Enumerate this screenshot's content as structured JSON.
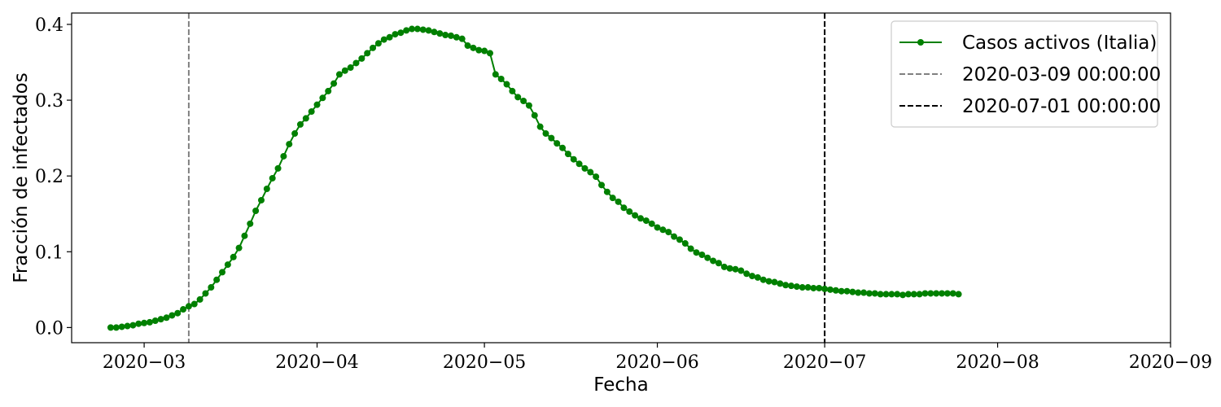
{
  "chart_data": {
    "type": "line",
    "xlabel": "Fecha",
    "ylabel": "Fracción de infectados",
    "xlim": [
      "2020-02-17",
      "2020-09-01"
    ],
    "ylim": [
      -0.02,
      0.415
    ],
    "x_ticks": [
      "2020-03-01",
      "2020-04-01",
      "2020-05-01",
      "2020-06-01",
      "2020-07-01",
      "2020-08-01",
      "2020-09-01"
    ],
    "x_tick_labels": [
      "2020−03",
      "2020−04",
      "2020−05",
      "2020−06",
      "2020−07",
      "2020−08",
      "2020−09"
    ],
    "y_ticks": [
      0.0,
      0.1,
      0.2,
      0.3,
      0.4
    ],
    "y_tick_labels": [
      "0.0",
      "0.1",
      "0.2",
      "0.3",
      "0.4"
    ],
    "grid": false,
    "legend_position": "top-right",
    "series": [
      {
        "name": "Casos activos (Italia)",
        "color": "#008000",
        "marker": "circle",
        "x_start": "2020-02-24",
        "values": [
          0.0,
          0.0,
          0.001,
          0.002,
          0.003,
          0.005,
          0.006,
          0.007,
          0.009,
          0.011,
          0.013,
          0.016,
          0.019,
          0.024,
          0.028,
          0.031,
          0.037,
          0.045,
          0.053,
          0.063,
          0.073,
          0.083,
          0.093,
          0.105,
          0.121,
          0.137,
          0.154,
          0.168,
          0.183,
          0.197,
          0.21,
          0.226,
          0.242,
          0.256,
          0.268,
          0.276,
          0.285,
          0.294,
          0.303,
          0.312,
          0.322,
          0.334,
          0.339,
          0.343,
          0.349,
          0.355,
          0.362,
          0.369,
          0.375,
          0.38,
          0.383,
          0.387,
          0.389,
          0.392,
          0.394,
          0.394,
          0.393,
          0.392,
          0.39,
          0.388,
          0.386,
          0.385,
          0.383,
          0.381,
          0.372,
          0.369,
          0.366,
          0.365,
          0.362,
          0.334,
          0.328,
          0.321,
          0.312,
          0.304,
          0.299,
          0.293,
          0.28,
          0.265,
          0.256,
          0.25,
          0.243,
          0.237,
          0.229,
          0.222,
          0.216,
          0.21,
          0.205,
          0.199,
          0.188,
          0.179,
          0.171,
          0.166,
          0.158,
          0.153,
          0.148,
          0.144,
          0.141,
          0.137,
          0.132,
          0.129,
          0.126,
          0.12,
          0.116,
          0.111,
          0.104,
          0.099,
          0.096,
          0.092,
          0.088,
          0.085,
          0.08,
          0.078,
          0.077,
          0.075,
          0.071,
          0.068,
          0.066,
          0.063,
          0.061,
          0.06,
          0.058,
          0.056,
          0.055,
          0.054,
          0.053,
          0.053,
          0.052,
          0.052,
          0.051,
          0.05,
          0.049,
          0.048,
          0.048,
          0.047,
          0.046,
          0.046,
          0.045,
          0.045,
          0.044,
          0.044,
          0.044,
          0.044,
          0.043,
          0.044,
          0.044,
          0.044,
          0.045,
          0.045,
          0.045,
          0.045,
          0.045,
          0.045,
          0.044
        ]
      },
      {
        "name": "2020-03-09 00:00:00",
        "type": "vline",
        "x": "2020-03-09",
        "color": "#808080",
        "linestyle": "dashed"
      },
      {
        "name": "2020-07-01 00:00:00",
        "type": "vline",
        "x": "2020-07-01",
        "color": "#000000",
        "linestyle": "dashed"
      }
    ]
  }
}
